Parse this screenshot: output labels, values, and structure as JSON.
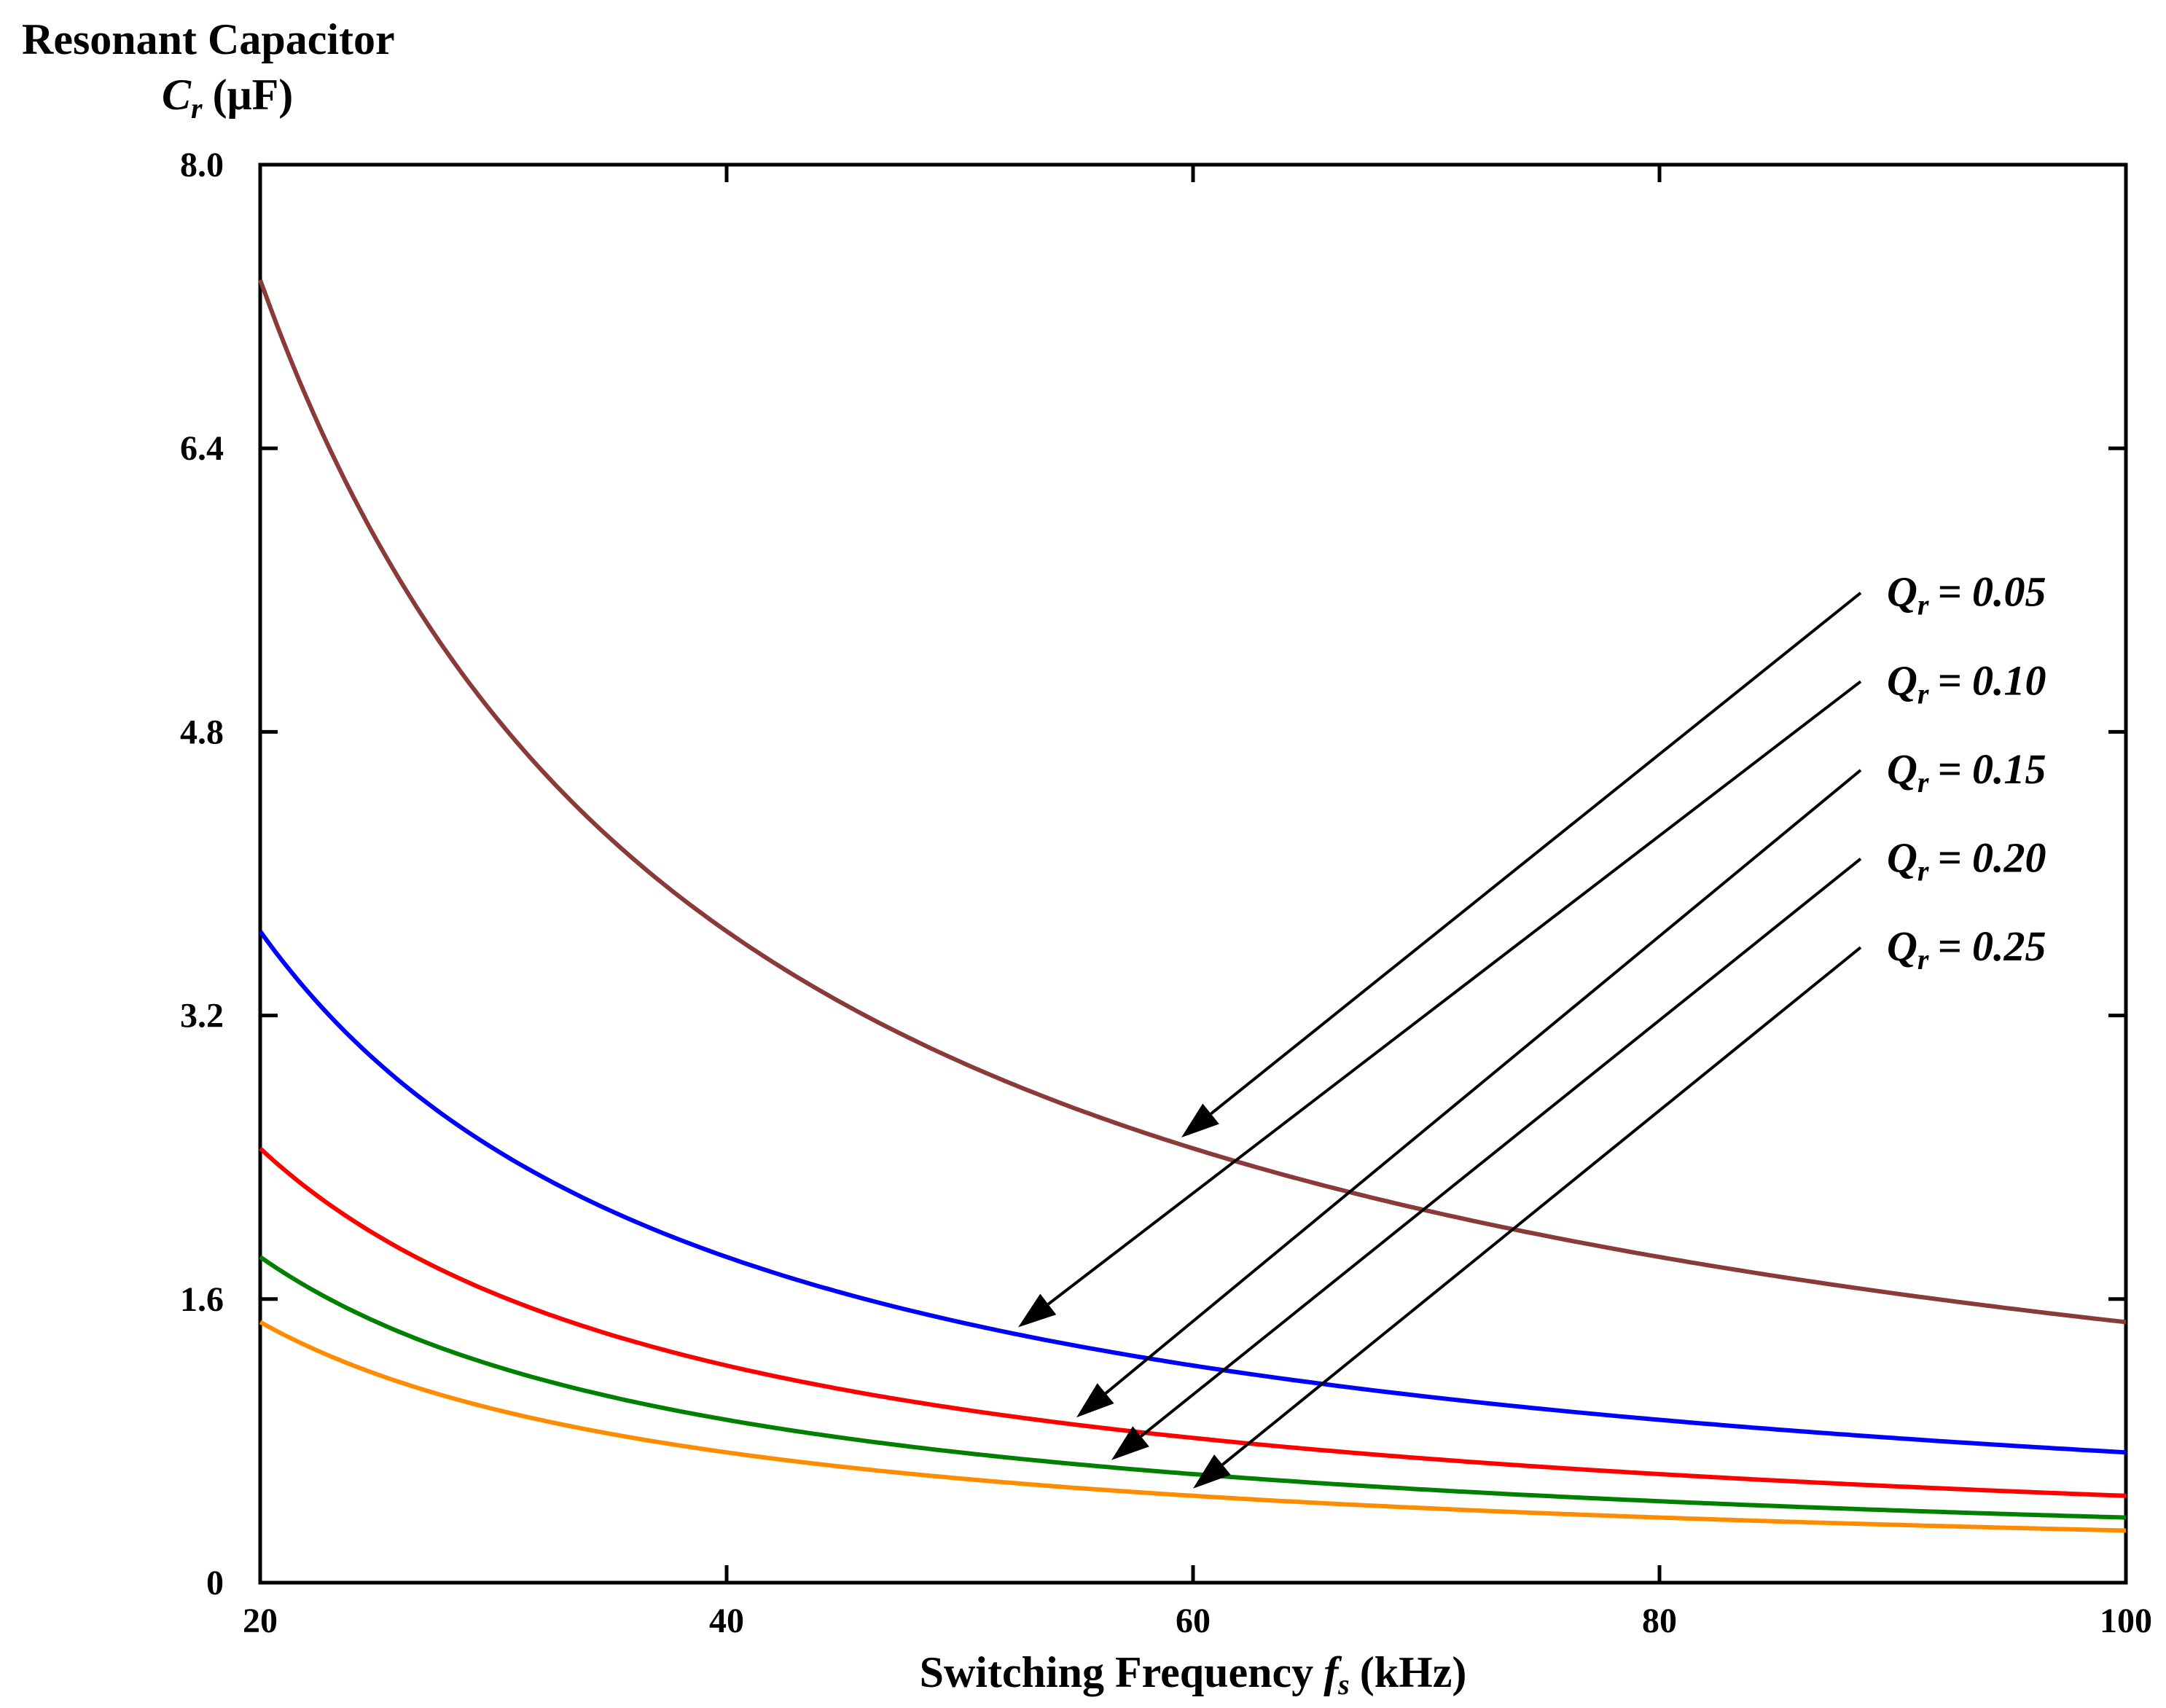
{
  "chart_data": {
    "type": "line",
    "ylabel_line1": "Resonant Capacitor",
    "ylabel_symbol": "C",
    "ylabel_subscript": "r",
    "ylabel_unit": "(μF)",
    "xlabel_text": "Switching Frequency",
    "xlabel_symbol": "f",
    "xlabel_subscript": "s",
    "xlabel_unit": "(kHz)",
    "xlim": [
      20,
      100
    ],
    "ylim": [
      0,
      8.0
    ],
    "x_ticks": [
      20,
      40,
      60,
      80,
      100
    ],
    "x_tick_labels": [
      "20",
      "40",
      "60",
      "80",
      "100"
    ],
    "y_ticks": [
      0,
      1.6,
      3.2,
      4.8,
      6.4,
      8.0
    ],
    "y_tick_labels": [
      "0",
      "1.6",
      "3.2",
      "4.8",
      "6.4",
      "8.0"
    ],
    "grid": false,
    "model": "C = k / f",
    "series": [
      {
        "name": "Qr = 0.05",
        "q_symbol": "Q",
        "q_subscript": "r",
        "q_value": "= 0.05",
        "k": 147.0,
        "color": "#8b3a3a",
        "arrow_target_x": 59.5
      },
      {
        "name": "Qr = 0.10",
        "q_symbol": "Q",
        "q_subscript": "r",
        "q_value": "= 0.10",
        "k": 73.5,
        "color": "#0000ff",
        "arrow_target_x": 52.5
      },
      {
        "name": "Qr = 0.15",
        "q_symbol": "Q",
        "q_subscript": "r",
        "q_value": "= 0.15",
        "k": 49.0,
        "color": "#ff0000",
        "arrow_target_x": 55.0
      },
      {
        "name": "Qr = 0.20",
        "q_symbol": "Q",
        "q_subscript": "r",
        "q_value": "= 0.20",
        "k": 36.75,
        "color": "#008000",
        "arrow_target_x": 56.5
      },
      {
        "name": "Qr = 0.25",
        "q_symbol": "Q",
        "q_subscript": "r",
        "q_value": "= 0.25",
        "k": 29.4,
        "color": "#ff8c00",
        "arrow_target_x": 60.0
      }
    ]
  }
}
